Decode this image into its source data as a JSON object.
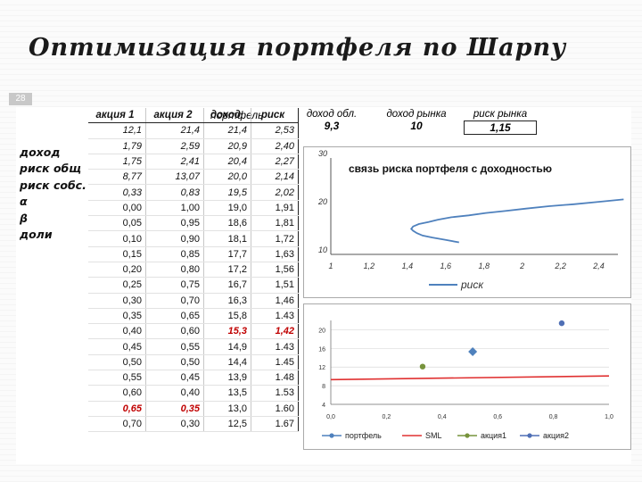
{
  "slide": {
    "title": "Оптимизация портфеля по Шарпу",
    "page_number": "28"
  },
  "table": {
    "header_col1": "акция 1",
    "header_col2": "акция 2",
    "header_portfolio": "портфель",
    "header_income": "доход",
    "header_risk": "риск",
    "row_labels": [
      "доход",
      "риск общ",
      "риск собс.",
      "α",
      "β",
      "доли"
    ],
    "rows": [
      [
        "12,1",
        "21,4",
        "21,4",
        "2,53"
      ],
      [
        "1,79",
        "2,59",
        "20,9",
        "2,40"
      ],
      [
        "1,75",
        "2,41",
        "20,4",
        "2,27"
      ],
      [
        "8,77",
        "13,07",
        "20,0",
        "2,14"
      ],
      [
        "0,33",
        "0,83",
        "19,5",
        "2,02"
      ],
      [
        "0,00",
        "1,00",
        "19,0",
        "1,91"
      ],
      [
        "0,05",
        "0,95",
        "18,6",
        "1,81"
      ],
      [
        "0,10",
        "0,90",
        "18,1",
        "1,72"
      ],
      [
        "0,15",
        "0,85",
        "17,7",
        "1,63"
      ],
      [
        "0,20",
        "0,80",
        "17,2",
        "1,56"
      ],
      [
        "0,25",
        "0,75",
        "16,7",
        "1,51"
      ],
      [
        "0,30",
        "0,70",
        "16,3",
        "1,46"
      ],
      [
        "0,35",
        "0,65",
        "15,8",
        "1.43"
      ],
      [
        "0,40",
        "0,60",
        "15,3",
        "1,42"
      ],
      [
        "0,45",
        "0,55",
        "14,9",
        "1.43"
      ],
      [
        "0,50",
        "0,50",
        "14,4",
        "1.45"
      ],
      [
        "0,55",
        "0,45",
        "13,9",
        "1.48"
      ],
      [
        "0,60",
        "0,40",
        "13,5",
        "1.53"
      ],
      [
        "0,65",
        "0,35",
        "13,0",
        "1.60"
      ],
      [
        "0,70",
        "0,30",
        "12,5",
        "1.67"
      ]
    ]
  },
  "market": {
    "bond_income_label": "доход обл.",
    "bond_income_value": "9,3",
    "market_income_label": "доход рынка",
    "market_income_value": "10",
    "market_risk_label": "риск рынка",
    "market_risk_value": "1,15"
  },
  "chart_data": [
    {
      "type": "line",
      "title": "связь риска портфеля с доходностью",
      "xticks": [
        "1",
        "1,2",
        "1,4",
        "1,6",
        "1,8",
        "2",
        "2,2",
        "2,4"
      ],
      "yticks": [
        "10",
        "20",
        "30"
      ],
      "xlim": [
        1,
        2.5
      ],
      "ylim": [
        10,
        30
      ],
      "legend": "риск",
      "series_color": "#4f81bd",
      "x": [
        2.53,
        2.4,
        2.27,
        2.14,
        2.02,
        1.91,
        1.81,
        1.72,
        1.63,
        1.56,
        1.51,
        1.46,
        1.43,
        1.42,
        1.43,
        1.45,
        1.48,
        1.53,
        1.6,
        1.67
      ],
      "y": [
        21.4,
        20.9,
        20.4,
        20.0,
        19.5,
        19.0,
        18.6,
        18.1,
        17.7,
        17.2,
        16.7,
        16.3,
        15.8,
        15.3,
        14.9,
        14.4,
        13.9,
        13.5,
        13.0,
        12.5
      ]
    },
    {
      "type": "scatter",
      "xticks": [
        "0,0",
        "0,2",
        "0,4",
        "0,6",
        "0,8",
        "1,0"
      ],
      "yticks": [
        "4",
        "8",
        "12",
        "16",
        "20"
      ],
      "xlim": [
        0,
        1
      ],
      "ylim": [
        4,
        22
      ],
      "series": [
        {
          "name": "портфель",
          "color": "#4f81bd",
          "x": [
            0.51
          ],
          "y": [
            15.3
          ]
        },
        {
          "name": "SML",
          "color": "#e03030",
          "x": [
            0,
            1
          ],
          "y": [
            9.3,
            10.1
          ]
        },
        {
          "name": "акция1",
          "color": "#77933c",
          "x": [
            0.33
          ],
          "y": [
            12.1
          ]
        },
        {
          "name": "акция2",
          "color": "#4f6fb5",
          "x": [
            0.83
          ],
          "y": [
            21.4
          ]
        }
      ]
    }
  ]
}
